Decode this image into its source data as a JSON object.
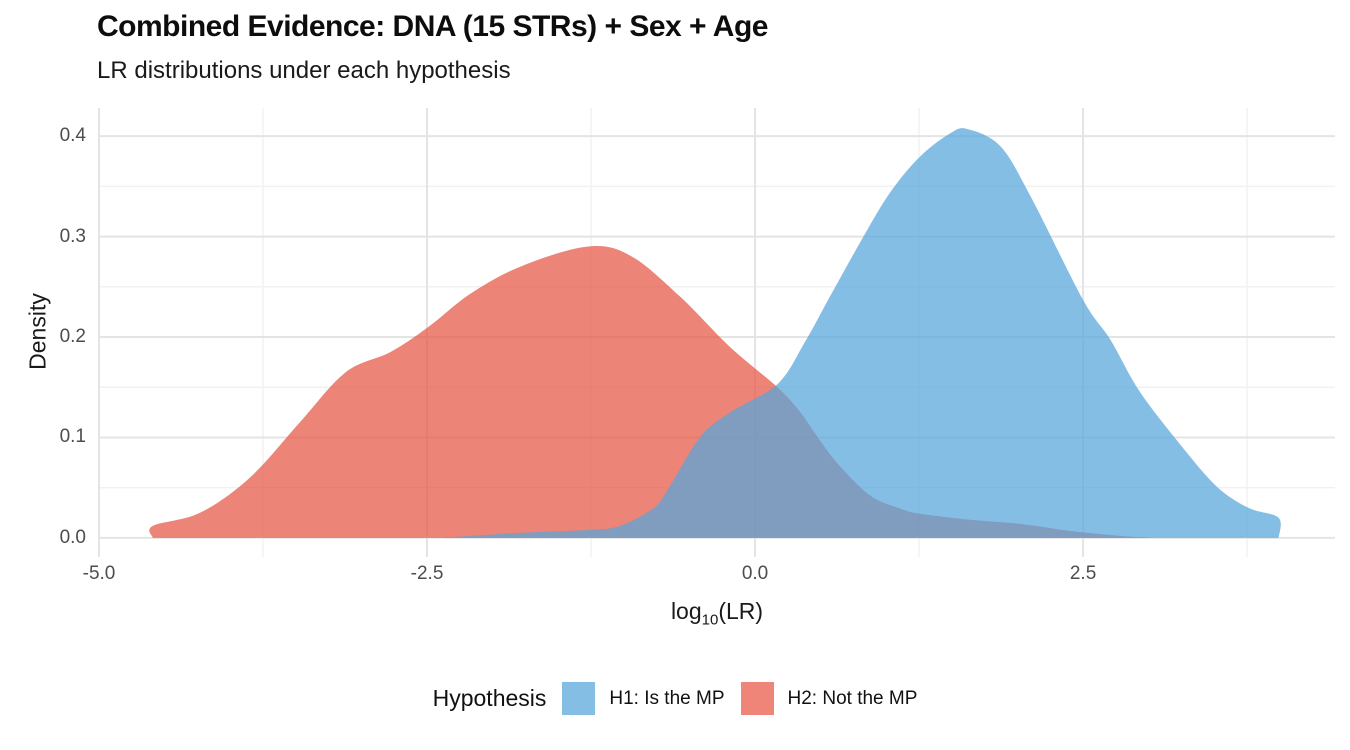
{
  "chart_data": {
    "type": "area",
    "title": "Combined Evidence: DNA (15 STRs) + Sex + Age",
    "subtitle": "LR distributions under each hypothesis",
    "ylabel": "Density",
    "xlabel_parts": {
      "pre": "log",
      "sub": "10",
      "post": "(LR)"
    },
    "xlim": [
      -5.0,
      4.42
    ],
    "ylim": [
      -0.019,
      0.428
    ],
    "grid": "on",
    "x_ticks": {
      "values": [
        -5.0,
        -2.5,
        0.0,
        2.5
      ],
      "labels": [
        "-5.0",
        "-2.5",
        "0.0",
        "2.5"
      ]
    },
    "x_minor_ticks": [
      -3.75,
      -1.25,
      1.25,
      3.75
    ],
    "y_ticks": {
      "values": [
        0.0,
        0.1,
        0.2,
        0.3,
        0.4
      ],
      "labels": [
        "0.0",
        "0.1",
        "0.2",
        "0.3",
        "0.4"
      ]
    },
    "y_minor_ticks": [
      0.05,
      0.15,
      0.25,
      0.35
    ],
    "legend": {
      "title": "Hypothesis",
      "position": "bottom",
      "entries": [
        {
          "label": "H1: Is the MP",
          "color": "#85BEE5"
        },
        {
          "label": "H2: Not the MP",
          "color": "#EE8578"
        }
      ]
    },
    "series": [
      {
        "name": "H2: Not the MP",
        "fill": "rgba(230,85,68,0.72)",
        "points": [
          [
            -4.59,
            0
          ],
          [
            -4.59,
            0.012
          ],
          [
            -4.23,
            0.025
          ],
          [
            -3.85,
            0.06
          ],
          [
            -3.47,
            0.115
          ],
          [
            -3.12,
            0.165
          ],
          [
            -2.78,
            0.185
          ],
          [
            -2.49,
            0.21
          ],
          [
            -2.17,
            0.243
          ],
          [
            -1.79,
            0.27
          ],
          [
            -1.28,
            0.29
          ],
          [
            -0.95,
            0.281
          ],
          [
            -0.57,
            0.24
          ],
          [
            -0.19,
            0.19
          ],
          [
            0.17,
            0.15
          ],
          [
            0.34,
            0.126
          ],
          [
            0.5,
            0.096
          ],
          [
            0.65,
            0.071
          ],
          [
            0.88,
            0.042
          ],
          [
            1.11,
            0.029
          ],
          [
            1.26,
            0.024
          ],
          [
            1.64,
            0.018
          ],
          [
            2.02,
            0.014
          ],
          [
            2.4,
            0.007
          ],
          [
            2.78,
            0.002
          ],
          [
            3.05,
            0
          ]
        ]
      },
      {
        "name": "H1: Is the MP",
        "fill": "rgba(86,165,219,0.72)",
        "points": [
          [
            -2.4,
            0
          ],
          [
            -1.79,
            0.005
          ],
          [
            -1.26,
            0.008
          ],
          [
            -1.03,
            0.012
          ],
          [
            -0.78,
            0.029
          ],
          [
            -0.67,
            0.047
          ],
          [
            -0.42,
            0.1
          ],
          [
            -0.19,
            0.125
          ],
          [
            0.17,
            0.153
          ],
          [
            0.38,
            0.195
          ],
          [
            0.57,
            0.24
          ],
          [
            0.8,
            0.294
          ],
          [
            1.03,
            0.344
          ],
          [
            1.26,
            0.38
          ],
          [
            1.49,
            0.403
          ],
          [
            1.62,
            0.407
          ],
          [
            1.87,
            0.39
          ],
          [
            2.1,
            0.34
          ],
          [
            2.5,
            0.237
          ],
          [
            2.71,
            0.197
          ],
          [
            2.93,
            0.146
          ],
          [
            3.24,
            0.093
          ],
          [
            3.52,
            0.051
          ],
          [
            3.76,
            0.03
          ],
          [
            3.99,
            0.02
          ],
          [
            3.99,
            0
          ]
        ]
      }
    ],
    "colors": {
      "grid_major": "#e4e4e4",
      "grid_minor": "#f1f1f1",
      "background": "#ffffff"
    }
  }
}
